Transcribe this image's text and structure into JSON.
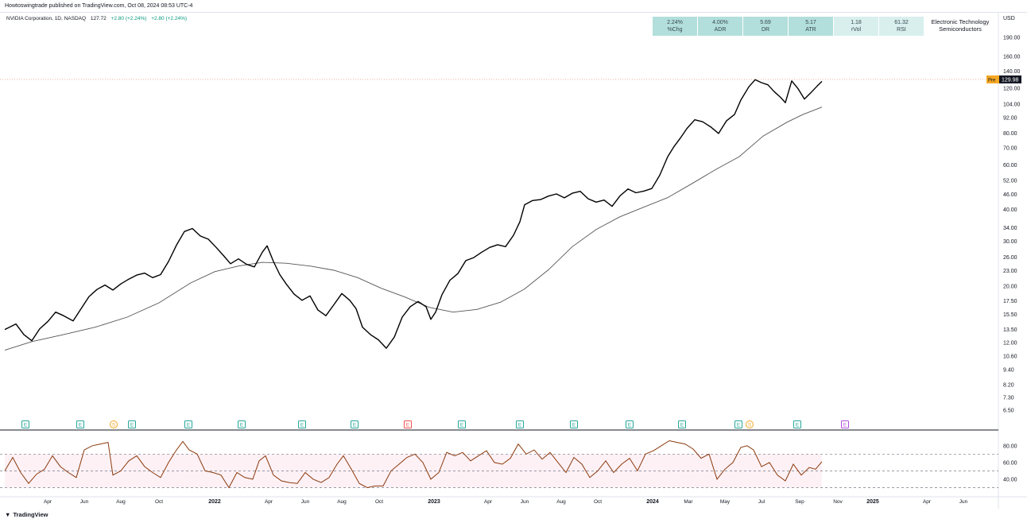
{
  "header": {
    "published": "Howtoswingtrade published on TradingView.com, Oct 08, 2024 08:53 UTC-4",
    "symbol": "NVIDIA Corporation, 1D, NASDAQ",
    "price": "127.72",
    "change": "+2.80 (+2.24%)",
    "change2": "+2.80 (+2.24%)"
  },
  "stats": [
    {
      "value": "2.24%",
      "label": "%Chg"
    },
    {
      "value": "4.00%",
      "label": "ADR"
    },
    {
      "value": "5.69",
      "label": "DR"
    },
    {
      "value": "5.17",
      "label": "ATR"
    },
    {
      "value": "1.18",
      "label": "rVol"
    },
    {
      "value": "61.32",
      "label": "RSI"
    }
  ],
  "sector": {
    "line1": "Electronic Technology",
    "line2": "Semiconductors"
  },
  "currency": "USD",
  "footer": {
    "brand": "TradingView"
  },
  "colors": {
    "price": "#000000",
    "ma": "#555555",
    "rsi": "#8b3a0e",
    "rsi_band": "#fce4ec",
    "stat_bg": "#b2dfdb",
    "earnings": "#26a69a",
    "earnings_neg": "#ef5350",
    "dividend": "#f5a623",
    "future_earnings": "#b44ee0"
  },
  "chart_data": {
    "type": "line",
    "title": "NVIDIA Corporation, 1D, NASDAQ",
    "y_scale": "log",
    "ylim": [
      5.8,
      215
    ],
    "y_ticks": [
      190,
      160,
      140,
      120,
      104,
      92,
      80,
      70,
      60,
      52,
      46,
      40,
      34,
      30,
      26,
      23,
      20,
      17.5,
      15.5,
      13.5,
      12,
      10.6,
      9.4,
      8.2,
      7.3,
      6.5
    ],
    "y_tick_labels": [
      "190.00",
      "160.00",
      "140.00",
      "120.00",
      "104.00",
      "92.00",
      "80.00",
      "70.00",
      "60.00",
      "52.00",
      "46.00",
      "40.00",
      "34.00",
      "30.00",
      "26.00",
      "23.00",
      "20.00",
      "17.50",
      "15.50",
      "13.50",
      "12.00",
      "10.60",
      "9.40",
      "8.20",
      "7.30",
      "6.50"
    ],
    "price_label": {
      "prefix": "Pre",
      "value": "129.98"
    },
    "x_ticks": [
      "Apr",
      "Jun",
      "Aug",
      "Oct",
      "2022",
      "Apr",
      "Jun",
      "Aug",
      "Oct",
      "2023",
      "Apr",
      "Jun",
      "Aug",
      "Oct",
      "2024",
      "Mar",
      "May",
      "Jul",
      "Sep",
      "Nov",
      "2025",
      "Apr",
      "Jun"
    ],
    "x_tick_pos": [
      60,
      106,
      152,
      200,
      270,
      338,
      384,
      430,
      477,
      546,
      614,
      660,
      706,
      752,
      821,
      866,
      912,
      958,
      1006,
      1054,
      1098,
      1166,
      1212
    ],
    "series": [
      {
        "name": "NVDA",
        "points": [
          [
            6,
            13.5
          ],
          [
            20,
            14.2
          ],
          [
            30,
            12.9
          ],
          [
            40,
            12.2
          ],
          [
            50,
            13.6
          ],
          [
            60,
            14.5
          ],
          [
            70,
            15.8
          ],
          [
            80,
            15.3
          ],
          [
            92,
            14.6
          ],
          [
            102,
            16.3
          ],
          [
            112,
            18.2
          ],
          [
            122,
            19.4
          ],
          [
            132,
            20.2
          ],
          [
            142,
            19.3
          ],
          [
            152,
            20.4
          ],
          [
            162,
            21.3
          ],
          [
            172,
            22.1
          ],
          [
            182,
            22.5
          ],
          [
            192,
            21.6
          ],
          [
            202,
            22.2
          ],
          [
            212,
            25
          ],
          [
            222,
            29
          ],
          [
            232,
            32.8
          ],
          [
            242,
            33.7
          ],
          [
            252,
            31.5
          ],
          [
            262,
            30.6
          ],
          [
            272,
            28.4
          ],
          [
            282,
            26.2
          ],
          [
            290,
            24.5
          ],
          [
            300,
            25.6
          ],
          [
            310,
            24.4
          ],
          [
            320,
            23.8
          ],
          [
            330,
            27.2
          ],
          [
            336,
            28.8
          ],
          [
            344,
            25
          ],
          [
            352,
            22.2
          ],
          [
            360,
            20.4
          ],
          [
            370,
            18.6
          ],
          [
            380,
            17.6
          ],
          [
            390,
            18.3
          ],
          [
            400,
            16.1
          ],
          [
            410,
            15.3
          ],
          [
            420,
            16.9
          ],
          [
            430,
            18.7
          ],
          [
            440,
            17.6
          ],
          [
            448,
            16.3
          ],
          [
            456,
            13.8
          ],
          [
            466,
            12.9
          ],
          [
            476,
            12.3
          ],
          [
            486,
            11.4
          ],
          [
            496,
            12.6
          ],
          [
            506,
            15.1
          ],
          [
            516,
            16.6
          ],
          [
            526,
            17.4
          ],
          [
            536,
            16.6
          ],
          [
            542,
            14.8
          ],
          [
            548,
            15.8
          ],
          [
            556,
            18.5
          ],
          [
            566,
            21.1
          ],
          [
            576,
            22.4
          ],
          [
            586,
            25.2
          ],
          [
            596,
            25.9
          ],
          [
            606,
            27.2
          ],
          [
            616,
            28.4
          ],
          [
            626,
            29.1
          ],
          [
            636,
            28.6
          ],
          [
            646,
            31.7
          ],
          [
            654,
            35.8
          ],
          [
            660,
            41.8
          ],
          [
            670,
            43.4
          ],
          [
            680,
            43.8
          ],
          [
            690,
            45.2
          ],
          [
            700,
            46.1
          ],
          [
            710,
            44.5
          ],
          [
            720,
            46.4
          ],
          [
            730,
            47.2
          ],
          [
            740,
            44.1
          ],
          [
            750,
            42.8
          ],
          [
            760,
            43.6
          ],
          [
            770,
            41.2
          ],
          [
            780,
            45.3
          ],
          [
            790,
            48.2
          ],
          [
            800,
            46.6
          ],
          [
            810,
            47.3
          ],
          [
            820,
            48.4
          ],
          [
            830,
            54.6
          ],
          [
            840,
            64.6
          ],
          [
            848,
            70.8
          ],
          [
            856,
            76.5
          ],
          [
            864,
            83.2
          ],
          [
            874,
            90.2
          ],
          [
            884,
            88.6
          ],
          [
            894,
            84.6
          ],
          [
            904,
            79.7
          ],
          [
            914,
            89.4
          ],
          [
            924,
            94.6
          ],
          [
            932,
            107.8
          ],
          [
            942,
            121.5
          ],
          [
            950,
            129.6
          ],
          [
            958,
            126.2
          ],
          [
            966,
            123.8
          ],
          [
            974,
            116.4
          ],
          [
            982,
            110.5
          ],
          [
            988,
            105.3
          ],
          [
            996,
            128.2
          ],
          [
            1004,
            119.5
          ],
          [
            1012,
            108.8
          ],
          [
            1020,
            115.2
          ],
          [
            1028,
            122.4
          ],
          [
            1034,
            127.7
          ]
        ]
      },
      {
        "name": "MA",
        "points": [
          [
            6,
            11.2
          ],
          [
            40,
            12.1
          ],
          [
            80,
            12.9
          ],
          [
            120,
            13.8
          ],
          [
            160,
            15.1
          ],
          [
            200,
            17.2
          ],
          [
            240,
            20.6
          ],
          [
            270,
            22.8
          ],
          [
            300,
            24
          ],
          [
            330,
            24.8
          ],
          [
            360,
            24.6
          ],
          [
            390,
            24
          ],
          [
            420,
            23.1
          ],
          [
            450,
            21.6
          ],
          [
            480,
            19.6
          ],
          [
            510,
            18.1
          ],
          [
            540,
            16.5
          ],
          [
            570,
            15.8
          ],
          [
            600,
            16.2
          ],
          [
            630,
            17.3
          ],
          [
            660,
            19.5
          ],
          [
            690,
            23.2
          ],
          [
            720,
            28.6
          ],
          [
            750,
            33.4
          ],
          [
            780,
            37.5
          ],
          [
            810,
            40.9
          ],
          [
            840,
            44.6
          ],
          [
            870,
            50.5
          ],
          [
            900,
            57.4
          ],
          [
            930,
            64.6
          ],
          [
            960,
            77.8
          ],
          [
            990,
            88.2
          ],
          [
            1010,
            94.6
          ],
          [
            1034,
            101.2
          ]
        ]
      }
    ],
    "rsi": {
      "ylim": [
        20,
        95
      ],
      "y_ticks": [
        80,
        60,
        40
      ],
      "y_tick_labels": [
        "80.00",
        "60.00",
        "40.00"
      ],
      "levels": [
        70,
        50,
        30
      ],
      "points": [
        [
          6,
          50
        ],
        [
          16,
          66
        ],
        [
          26,
          48
        ],
        [
          36,
          35
        ],
        [
          46,
          46
        ],
        [
          56,
          52
        ],
        [
          66,
          68
        ],
        [
          76,
          55
        ],
        [
          86,
          48
        ],
        [
          96,
          42
        ],
        [
          106,
          75
        ],
        [
          116,
          80
        ],
        [
          126,
          82
        ],
        [
          136,
          84
        ],
        [
          142,
          45
        ],
        [
          152,
          50
        ],
        [
          162,
          62
        ],
        [
          172,
          68
        ],
        [
          182,
          55
        ],
        [
          192,
          48
        ],
        [
          202,
          42
        ],
        [
          212,
          60
        ],
        [
          222,
          75
        ],
        [
          230,
          85
        ],
        [
          238,
          75
        ],
        [
          248,
          70
        ],
        [
          258,
          50
        ],
        [
          268,
          48
        ],
        [
          278,
          45
        ],
        [
          288,
          30
        ],
        [
          298,
          48
        ],
        [
          308,
          42
        ],
        [
          318,
          40
        ],
        [
          326,
          62
        ],
        [
          334,
          68
        ],
        [
          344,
          45
        ],
        [
          354,
          38
        ],
        [
          364,
          36
        ],
        [
          374,
          35
        ],
        [
          384,
          48
        ],
        [
          394,
          40
        ],
        [
          404,
          36
        ],
        [
          414,
          42
        ],
        [
          424,
          58
        ],
        [
          432,
          68
        ],
        [
          442,
          52
        ],
        [
          452,
          35
        ],
        [
          462,
          30
        ],
        [
          472,
          32
        ],
        [
          482,
          32
        ],
        [
          492,
          50
        ],
        [
          502,
          58
        ],
        [
          512,
          66
        ],
        [
          522,
          70
        ],
        [
          532,
          60
        ],
        [
          542,
          40
        ],
        [
          552,
          48
        ],
        [
          562,
          72
        ],
        [
          572,
          68
        ],
        [
          582,
          72
        ],
        [
          592,
          62
        ],
        [
          602,
          68
        ],
        [
          612,
          74
        ],
        [
          622,
          60
        ],
        [
          632,
          58
        ],
        [
          642,
          65
        ],
        [
          652,
          82
        ],
        [
          662,
          70
        ],
        [
          672,
          75
        ],
        [
          682,
          64
        ],
        [
          692,
          72
        ],
        [
          702,
          60
        ],
        [
          712,
          48
        ],
        [
          722,
          66
        ],
        [
          732,
          58
        ],
        [
          742,
          42
        ],
        [
          752,
          50
        ],
        [
          762,
          62
        ],
        [
          772,
          48
        ],
        [
          782,
          58
        ],
        [
          792,
          65
        ],
        [
          802,
          50
        ],
        [
          812,
          70
        ],
        [
          822,
          74
        ],
        [
          832,
          80
        ],
        [
          842,
          86
        ],
        [
          852,
          84
        ],
        [
          862,
          82
        ],
        [
          872,
          76
        ],
        [
          882,
          65
        ],
        [
          892,
          70
        ],
        [
          902,
          40
        ],
        [
          912,
          52
        ],
        [
          922,
          60
        ],
        [
          932,
          78
        ],
        [
          940,
          80
        ],
        [
          948,
          75
        ],
        [
          958,
          55
        ],
        [
          968,
          60
        ],
        [
          978,
          45
        ],
        [
          988,
          38
        ],
        [
          998,
          58
        ],
        [
          1008,
          45
        ],
        [
          1018,
          54
        ],
        [
          1026,
          52
        ],
        [
          1034,
          61
        ]
      ]
    },
    "events": [
      {
        "x": 32,
        "label": "E",
        "kind": "earnings"
      },
      {
        "x": 101,
        "label": "E",
        "kind": "earnings"
      },
      {
        "x": 143,
        "label": "S",
        "kind": "split"
      },
      {
        "x": 166,
        "label": "E",
        "kind": "earnings"
      },
      {
        "x": 237,
        "label": "E",
        "kind": "earnings"
      },
      {
        "x": 304,
        "label": "E",
        "kind": "earnings"
      },
      {
        "x": 380,
        "label": "E",
        "kind": "earnings"
      },
      {
        "x": 446,
        "label": "E",
        "kind": "earnings"
      },
      {
        "x": 513,
        "label": "E",
        "kind": "earnings_neg"
      },
      {
        "x": 581,
        "label": "E",
        "kind": "earnings"
      },
      {
        "x": 654,
        "label": "E",
        "kind": "earnings"
      },
      {
        "x": 722,
        "label": "E",
        "kind": "earnings"
      },
      {
        "x": 792,
        "label": "E",
        "kind": "earnings"
      },
      {
        "x": 858,
        "label": "E",
        "kind": "earnings"
      },
      {
        "x": 929,
        "label": "E",
        "kind": "earnings"
      },
      {
        "x": 943,
        "label": "S",
        "kind": "split"
      },
      {
        "x": 1003,
        "label": "E",
        "kind": "earnings"
      },
      {
        "x": 1063,
        "label": "E",
        "kind": "future_earnings"
      }
    ]
  }
}
